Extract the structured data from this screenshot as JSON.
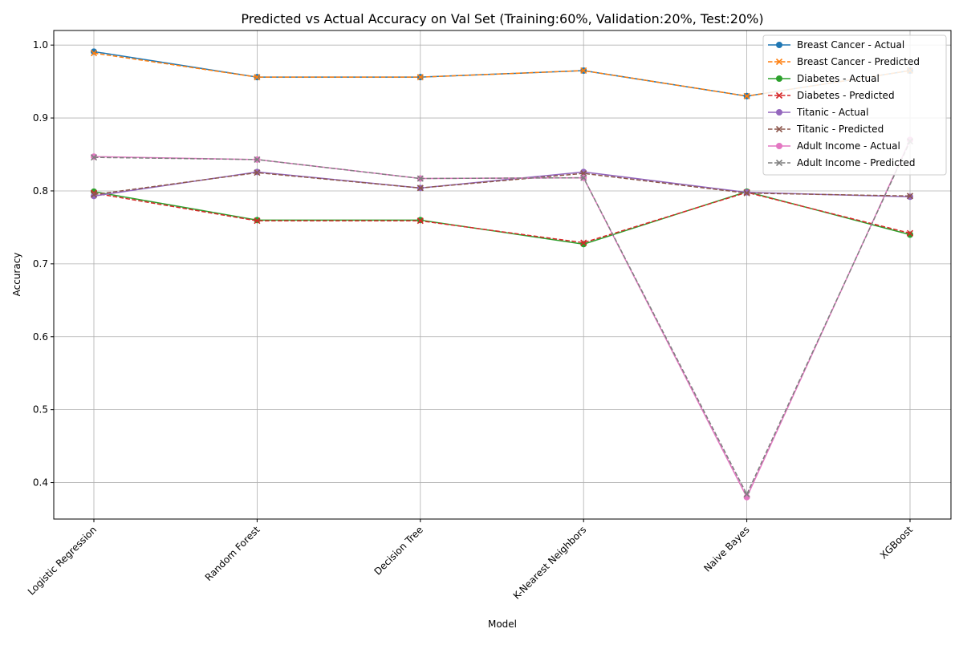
{
  "chart_data": {
    "type": "line",
    "title": "Predicted vs Actual Accuracy on Val Set (Training:60%, Validation:20%, Test:20%)",
    "xlabel": "Model",
    "ylabel": "Accuracy",
    "categories": [
      "Logistic Regression",
      "Random Forest",
      "Decision Tree",
      "K-Nearest Neighbors",
      "Naive Bayes",
      "XGBoost"
    ],
    "ylim": [
      0.35,
      1.02
    ],
    "yticks": [
      0.4,
      0.5,
      0.6,
      0.7,
      0.8,
      0.9,
      1.0
    ],
    "grid": true,
    "legend_position": "top-right",
    "series": [
      {
        "name": "Breast Cancer - Actual",
        "color": "#1f77b4",
        "style": "solid",
        "marker": "circle",
        "values": [
          0.991,
          0.956,
          0.956,
          0.965,
          0.93,
          0.965
        ]
      },
      {
        "name": "Breast Cancer - Predicted",
        "color": "#ff7f0e",
        "style": "dashed",
        "marker": "x",
        "values": [
          0.989,
          0.956,
          0.956,
          0.965,
          0.93,
          0.965
        ]
      },
      {
        "name": "Diabetes - Actual",
        "color": "#2ca02c",
        "style": "solid",
        "marker": "circle",
        "values": [
          0.799,
          0.76,
          0.76,
          0.727,
          0.799,
          0.74
        ]
      },
      {
        "name": "Diabetes - Predicted",
        "color": "#d62728",
        "style": "dashed",
        "marker": "x",
        "values": [
          0.797,
          0.759,
          0.759,
          0.729,
          0.798,
          0.742
        ]
      },
      {
        "name": "Titanic - Actual",
        "color": "#9467bd",
        "style": "solid",
        "marker": "circle",
        "values": [
          0.793,
          0.826,
          0.804,
          0.826,
          0.798,
          0.792
        ]
      },
      {
        "name": "Titanic - Predicted",
        "color": "#8c564b",
        "style": "dashed",
        "marker": "x",
        "values": [
          0.795,
          0.825,
          0.804,
          0.824,
          0.797,
          0.793
        ]
      },
      {
        "name": "Adult Income - Actual",
        "color": "#e377c2",
        "style": "solid",
        "marker": "circle",
        "values": [
          0.847,
          0.843,
          0.817,
          0.818,
          0.38,
          0.87
        ]
      },
      {
        "name": "Adult Income - Predicted",
        "color": "#7f7f7f",
        "style": "dashed",
        "marker": "x",
        "values": [
          0.846,
          0.843,
          0.817,
          0.818,
          0.384,
          0.868
        ]
      }
    ]
  }
}
